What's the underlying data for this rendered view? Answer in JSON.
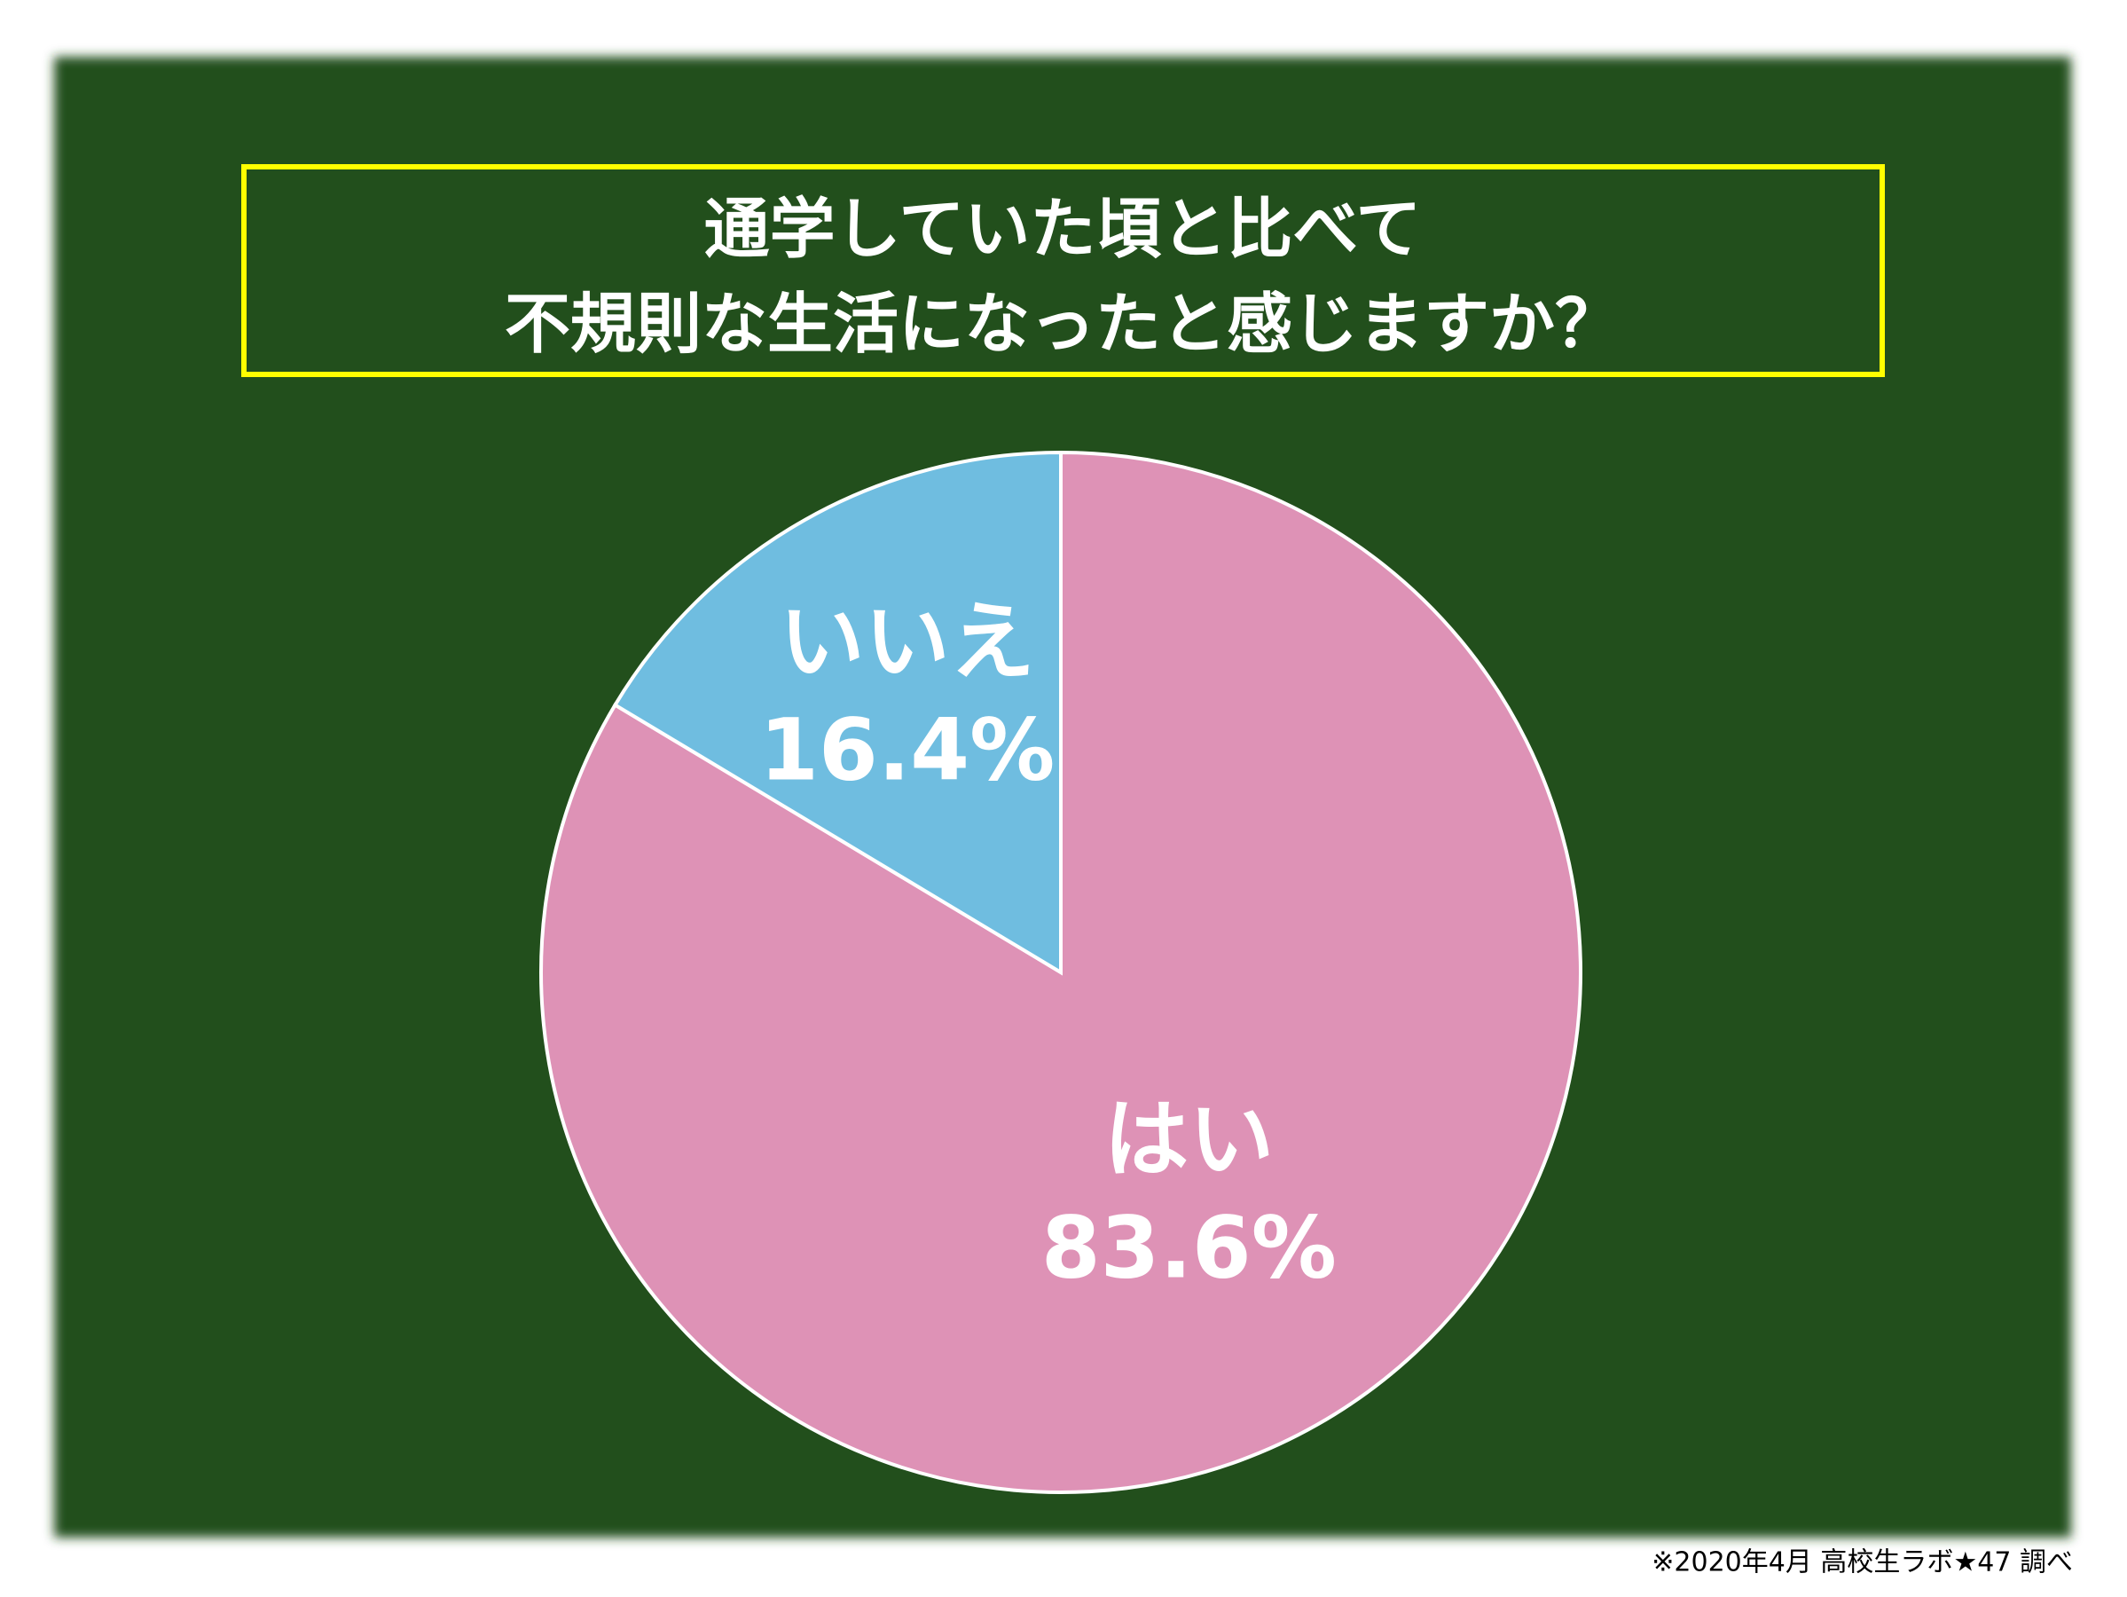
{
  "chart_data": {
    "type": "pie",
    "title": [
      "通学していた頃と比べて",
      "不規則な生活になったと感じますか？"
    ],
    "categories": [
      "はい",
      "いいえ"
    ],
    "values": [
      83.6,
      16.4
    ],
    "value_labels": [
      "83.6%",
      "16.4%"
    ],
    "colors": [
      "#de92b6",
      "#6fbde0"
    ],
    "note": "※2020年4月 高校生ラボ★47 調べ"
  }
}
